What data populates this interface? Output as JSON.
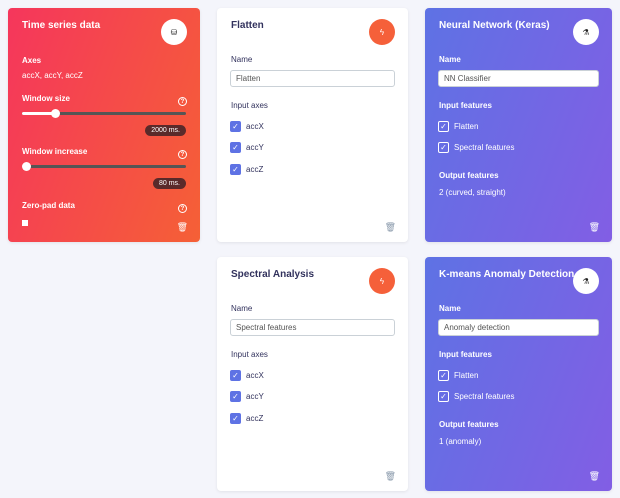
{
  "time_series": {
    "title": "Time series data",
    "icon": "database-icon",
    "axes_label": "Axes",
    "axes_value": "accX, accY, accZ",
    "window_size_label": "Window size",
    "window_size_value": "2000 ms.",
    "window_size_fraction": 0.2,
    "window_increase_label": "Window increase",
    "window_increase_value": "80 ms.",
    "window_increase_fraction": 0,
    "zero_pad_label": "Zero-pad data",
    "zero_pad_checked": false
  },
  "flatten": {
    "title": "Flatten",
    "icon": "bolt-icon",
    "name_label": "Name",
    "name_value": "Flatten",
    "input_axes_label": "Input axes",
    "axes": [
      "accX",
      "accY",
      "accZ"
    ]
  },
  "spectral": {
    "title": "Spectral Analysis",
    "icon": "bolt-icon",
    "name_label": "Name",
    "name_value": "Spectral features",
    "input_axes_label": "Input axes",
    "axes": [
      "accX",
      "accY",
      "accZ"
    ]
  },
  "nn": {
    "title": "Neural Network (Keras)",
    "icon": "flask-icon",
    "name_label": "Name",
    "name_value": "NN Classifier",
    "input_features_label": "Input features",
    "features": [
      "Flatten",
      "Spectral features"
    ],
    "output_features_label": "Output features",
    "output_value": "2 (curved, straight)"
  },
  "kmeans": {
    "title": "K-means Anomaly Detection",
    "icon": "flask-icon",
    "name_label": "Name",
    "name_value": "Anomaly detection",
    "input_features_label": "Input features",
    "features": [
      "Flatten",
      "Spectral features"
    ],
    "output_features_label": "Output features",
    "output_value": "1 (anomaly)"
  },
  "colors": {
    "red_start": "#f5365c",
    "red_end": "#f56036",
    "purple_start": "#5e72e4",
    "purple_end": "#825ee4"
  }
}
